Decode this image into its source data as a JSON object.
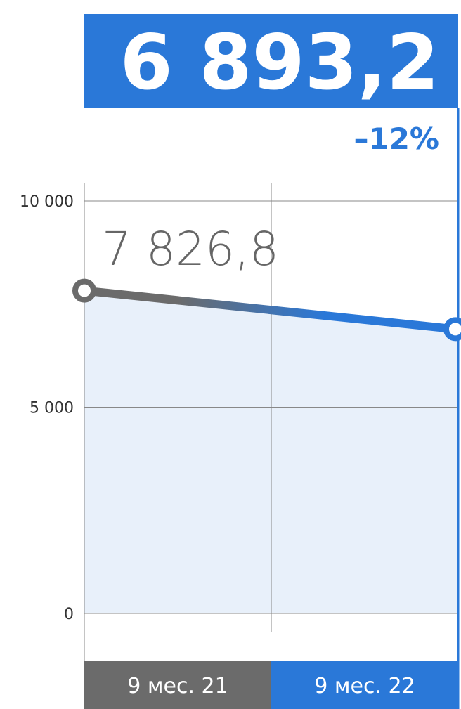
{
  "chart_data": {
    "type": "line",
    "categories": [
      "9 мес. 21",
      "9 мес. 22"
    ],
    "values": [
      7826.8,
      6893.2
    ],
    "value_labels": [
      "7 826,8",
      "6 893,2"
    ],
    "change": "–12%",
    "colors": [
      "#6b6b6b",
      "#2a78d8"
    ],
    "ylim": [
      0,
      10000
    ],
    "yticks": [
      0,
      {
        "value": 5000,
        "label": "5 000"
      },
      {
        "value": 10000,
        "label": "10 000"
      }
    ],
    "grid": true
  }
}
